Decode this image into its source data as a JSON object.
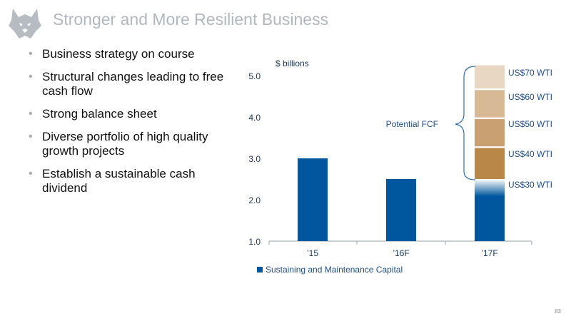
{
  "slide": {
    "title": "Stronger and More Resilient Business",
    "page_number": "83",
    "bullets": [
      "Business strategy on course",
      "Structural changes leading to free cash flow",
      "Strong balance sheet",
      "Diverse portfolio of high quality growth projects",
      "Establish a sustainable cash dividend"
    ]
  },
  "colors": {
    "bar": "#00579d",
    "axis_text": "#17375e",
    "label_text": "#1f4e8c",
    "brace": "#2e6db4",
    "wti_30": "#9fc0dc",
    "wti_40": "#b98746",
    "wti_50": "#c9a071",
    "wti_60": "#d8b995",
    "wti_70": "#e8d8c3"
  },
  "icons": {
    "logo": "husky-dog-head-logo"
  },
  "chart_data": {
    "type": "bar",
    "ylabel": "$ billions",
    "ylim": [
      1.0,
      5.4
    ],
    "yticks": [
      "1.0",
      "2.0",
      "3.0",
      "4.0",
      "5.0"
    ],
    "categories": [
      "’15",
      "’16F",
      "’17F"
    ],
    "series": [
      {
        "name": "Sustaining and Maintenance Capital",
        "values": [
          3.0,
          2.5,
          2.5
        ]
      }
    ],
    "fcf_label": "Potential FCF",
    "fcf_stack": [
      {
        "label": "US$30 WTI",
        "from": 2.5,
        "to": 2.5
      },
      {
        "label": "US$40 WTI",
        "from": 2.5,
        "to": 3.25
      },
      {
        "label": "US$50 WTI",
        "from": 3.25,
        "to": 3.95
      },
      {
        "label": "US$60 WTI",
        "from": 3.95,
        "to": 4.65
      },
      {
        "label": "US$70 WTI",
        "from": 4.65,
        "to": 5.25
      }
    ],
    "legend": "bottom"
  }
}
